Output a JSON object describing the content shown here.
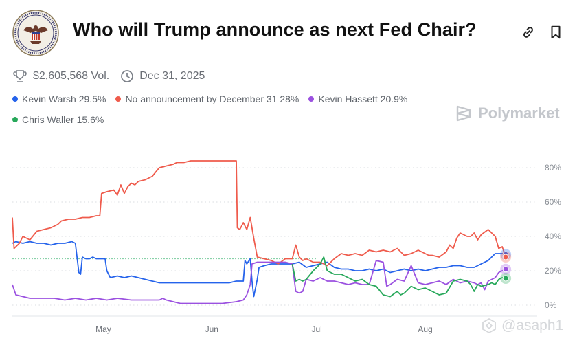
{
  "header": {
    "title": "Who will Trump announce as next Fed Chair?",
    "volume": "$2,605,568 Vol.",
    "end_date": "Dec 31, 2025",
    "brand": "Polymarket",
    "watermark": "@asaph1"
  },
  "colors": {
    "warsh": "#2563eb",
    "none": "#ef5b4c",
    "hassett": "#9b51e0",
    "waller": "#27a85a"
  },
  "icons": [
    "trophy-icon",
    "clock-icon",
    "link-icon",
    "bookmark-icon",
    "polymarket-logo-icon",
    "federal-reserve-seal"
  ],
  "chart_data": {
    "type": "line",
    "ylim": [
      0,
      85
    ],
    "y_ticks": [
      0,
      20,
      40,
      60,
      80
    ],
    "y_tick_labels": [
      "0%",
      "20%",
      "40%",
      "60%",
      "80%"
    ],
    "x_range": [
      0,
      150
    ],
    "x_ticks": [
      {
        "x": 26,
        "label": "May"
      },
      {
        "x": 57,
        "label": "Jun"
      },
      {
        "x": 87,
        "label": "Jul"
      },
      {
        "x": 118,
        "label": "Aug"
      }
    ],
    "reference_y": 27,
    "series": [
      {
        "key": "warsh",
        "name": "Kevin Warsh",
        "label": "29.5%",
        "color": "#2563eb",
        "points": [
          [
            0,
            36
          ],
          [
            1,
            37
          ],
          [
            3,
            36
          ],
          [
            5,
            37
          ],
          [
            7,
            36
          ],
          [
            9,
            36
          ],
          [
            11,
            35
          ],
          [
            13,
            36
          ],
          [
            15,
            36
          ],
          [
            17,
            37
          ],
          [
            18,
            36
          ],
          [
            19,
            19
          ],
          [
            19.5,
            18
          ],
          [
            20,
            28
          ],
          [
            21,
            27
          ],
          [
            22,
            27
          ],
          [
            23,
            28
          ],
          [
            24,
            27
          ],
          [
            25,
            27
          ],
          [
            26,
            27
          ],
          [
            26.5,
            27
          ],
          [
            27,
            20
          ],
          [
            28,
            16
          ],
          [
            30,
            17
          ],
          [
            32,
            16
          ],
          [
            34,
            17
          ],
          [
            36,
            16
          ],
          [
            38,
            15
          ],
          [
            40,
            14
          ],
          [
            42,
            13
          ],
          [
            44,
            13
          ],
          [
            46,
            13
          ],
          [
            50,
            13
          ],
          [
            54,
            13
          ],
          [
            58,
            13
          ],
          [
            62,
            13
          ],
          [
            64,
            14
          ],
          [
            66,
            14
          ],
          [
            66.5,
            26
          ],
          [
            67,
            24
          ],
          [
            68,
            27
          ],
          [
            68.5,
            14
          ],
          [
            69,
            5
          ],
          [
            69.5,
            10
          ],
          [
            70,
            15
          ],
          [
            70.5,
            22
          ],
          [
            72,
            23
          ],
          [
            74,
            24
          ],
          [
            76,
            24
          ],
          [
            78,
            24
          ],
          [
            80,
            24
          ],
          [
            82,
            25
          ],
          [
            84,
            22
          ],
          [
            86,
            23
          ],
          [
            88,
            24
          ],
          [
            90,
            25
          ],
          [
            92,
            22
          ],
          [
            94,
            21
          ],
          [
            96,
            21
          ],
          [
            98,
            20
          ],
          [
            100,
            20
          ],
          [
            102,
            21
          ],
          [
            104,
            20
          ],
          [
            106,
            21
          ],
          [
            108,
            19
          ],
          [
            110,
            20
          ],
          [
            112,
            21
          ],
          [
            114,
            20
          ],
          [
            116,
            21
          ],
          [
            118,
            20
          ],
          [
            120,
            21
          ],
          [
            122,
            22
          ],
          [
            124,
            22
          ],
          [
            126,
            23
          ],
          [
            128,
            23
          ],
          [
            130,
            22
          ],
          [
            132,
            22
          ],
          [
            134,
            24
          ],
          [
            136,
            26
          ],
          [
            138,
            30
          ],
          [
            140,
            30
          ],
          [
            141,
            29.5
          ]
        ]
      },
      {
        "key": "none",
        "name": "No announcement by December 31",
        "label": "28%",
        "color": "#ef5b4c",
        "points": [
          [
            0,
            51
          ],
          [
            0.5,
            33
          ],
          [
            2,
            36
          ],
          [
            3,
            40
          ],
          [
            5,
            38
          ],
          [
            7,
            43
          ],
          [
            9,
            44
          ],
          [
            11,
            45
          ],
          [
            13,
            47
          ],
          [
            14,
            49
          ],
          [
            16,
            50
          ],
          [
            18,
            50
          ],
          [
            20,
            51
          ],
          [
            22,
            51
          ],
          [
            24,
            52
          ],
          [
            25,
            52
          ],
          [
            25.5,
            65
          ],
          [
            27,
            66
          ],
          [
            29,
            67
          ],
          [
            30,
            64
          ],
          [
            31,
            70
          ],
          [
            32,
            65
          ],
          [
            33,
            69
          ],
          [
            34,
            71
          ],
          [
            35,
            70
          ],
          [
            36,
            72
          ],
          [
            38,
            73
          ],
          [
            40,
            75
          ],
          [
            42,
            80
          ],
          [
            44,
            81
          ],
          [
            46,
            82
          ],
          [
            47,
            83
          ],
          [
            49,
            83
          ],
          [
            51,
            84
          ],
          [
            54,
            84
          ],
          [
            58,
            84
          ],
          [
            62,
            84
          ],
          [
            64,
            84
          ],
          [
            64.3,
            45
          ],
          [
            65,
            44
          ],
          [
            66,
            48
          ],
          [
            67,
            44
          ],
          [
            68,
            51
          ],
          [
            69,
            39
          ],
          [
            70,
            28
          ],
          [
            72,
            27
          ],
          [
            74,
            26
          ],
          [
            76,
            24
          ],
          [
            78,
            27
          ],
          [
            80,
            27
          ],
          [
            81,
            35
          ],
          [
            82,
            28
          ],
          [
            83,
            26
          ],
          [
            84,
            27
          ],
          [
            86,
            25
          ],
          [
            88,
            25
          ],
          [
            90,
            23
          ],
          [
            92,
            27
          ],
          [
            94,
            30
          ],
          [
            96,
            29
          ],
          [
            98,
            30
          ],
          [
            100,
            29
          ],
          [
            102,
            32
          ],
          [
            104,
            31
          ],
          [
            106,
            32
          ],
          [
            108,
            31
          ],
          [
            110,
            33
          ],
          [
            112,
            29
          ],
          [
            114,
            30
          ],
          [
            116,
            32
          ],
          [
            118,
            30
          ],
          [
            119,
            29
          ],
          [
            120,
            29
          ],
          [
            122,
            28
          ],
          [
            124,
            31
          ],
          [
            125,
            35
          ],
          [
            126,
            33
          ],
          [
            127,
            39
          ],
          [
            128,
            42
          ],
          [
            130,
            40
          ],
          [
            131,
            40
          ],
          [
            132,
            42
          ],
          [
            133,
            38
          ],
          [
            134,
            41
          ],
          [
            136,
            44
          ],
          [
            137,
            42
          ],
          [
            138,
            40
          ],
          [
            139,
            33
          ],
          [
            140,
            34
          ],
          [
            141,
            28
          ]
        ]
      },
      {
        "key": "hassett",
        "name": "Kevin Hassett",
        "label": "20.9%",
        "color": "#9b51e0",
        "points": [
          [
            0,
            12
          ],
          [
            1,
            6
          ],
          [
            3,
            5
          ],
          [
            5,
            4
          ],
          [
            7,
            4
          ],
          [
            9,
            4
          ],
          [
            12,
            4
          ],
          [
            15,
            3
          ],
          [
            18,
            4
          ],
          [
            21,
            3
          ],
          [
            24,
            4
          ],
          [
            27,
            3
          ],
          [
            30,
            4
          ],
          [
            34,
            3
          ],
          [
            38,
            3
          ],
          [
            42,
            3
          ],
          [
            43,
            4
          ],
          [
            44,
            3
          ],
          [
            46,
            2
          ],
          [
            48,
            1
          ],
          [
            52,
            1
          ],
          [
            56,
            1
          ],
          [
            60,
            1
          ],
          [
            64,
            2
          ],
          [
            66,
            3
          ],
          [
            67,
            6
          ],
          [
            68,
            12
          ],
          [
            68.5,
            24
          ],
          [
            70,
            25
          ],
          [
            72,
            25
          ],
          [
            74,
            25
          ],
          [
            76,
            25
          ],
          [
            78,
            25
          ],
          [
            80,
            24
          ],
          [
            81,
            8
          ],
          [
            82,
            7
          ],
          [
            83,
            8
          ],
          [
            84,
            15
          ],
          [
            86,
            14
          ],
          [
            88,
            16
          ],
          [
            90,
            14
          ],
          [
            92,
            14
          ],
          [
            94,
            13
          ],
          [
            96,
            12
          ],
          [
            98,
            13
          ],
          [
            100,
            12
          ],
          [
            102,
            12
          ],
          [
            104,
            26
          ],
          [
            106,
            25
          ],
          [
            107,
            11
          ],
          [
            108,
            12
          ],
          [
            110,
            15
          ],
          [
            112,
            14
          ],
          [
            114,
            23
          ],
          [
            116,
            13
          ],
          [
            118,
            12
          ],
          [
            120,
            13
          ],
          [
            122,
            14
          ],
          [
            124,
            12
          ],
          [
            126,
            15
          ],
          [
            128,
            13
          ],
          [
            130,
            14
          ],
          [
            132,
            13
          ],
          [
            133,
            12
          ],
          [
            134,
            13
          ],
          [
            135,
            9
          ],
          [
            136,
            14
          ],
          [
            137,
            15
          ],
          [
            138,
            16
          ],
          [
            139,
            19
          ],
          [
            140,
            20
          ],
          [
            141,
            20.9
          ]
        ]
      },
      {
        "key": "waller",
        "name": "Chris Waller",
        "label": "15.6%",
        "color": "#27a85a",
        "points": [
          [
            80,
            24
          ],
          [
            81,
            14
          ],
          [
            82,
            15
          ],
          [
            83,
            14
          ],
          [
            84,
            15
          ],
          [
            86,
            20
          ],
          [
            88,
            24
          ],
          [
            89,
            28
          ],
          [
            90,
            20
          ],
          [
            92,
            18
          ],
          [
            94,
            18
          ],
          [
            96,
            16
          ],
          [
            98,
            14
          ],
          [
            100,
            15
          ],
          [
            102,
            12
          ],
          [
            104,
            11
          ],
          [
            106,
            6
          ],
          [
            108,
            5
          ],
          [
            110,
            8
          ],
          [
            111,
            6
          ],
          [
            112,
            7
          ],
          [
            114,
            11
          ],
          [
            116,
            9
          ],
          [
            118,
            10
          ],
          [
            120,
            8
          ],
          [
            122,
            6
          ],
          [
            124,
            7
          ],
          [
            126,
            14
          ],
          [
            128,
            15
          ],
          [
            130,
            14
          ],
          [
            131,
            12
          ],
          [
            132,
            8
          ],
          [
            133,
            12
          ],
          [
            134,
            11
          ],
          [
            136,
            12
          ],
          [
            137,
            13
          ],
          [
            138,
            12
          ],
          [
            139,
            15
          ],
          [
            140,
            16
          ],
          [
            141,
            15.6
          ]
        ]
      }
    ]
  }
}
